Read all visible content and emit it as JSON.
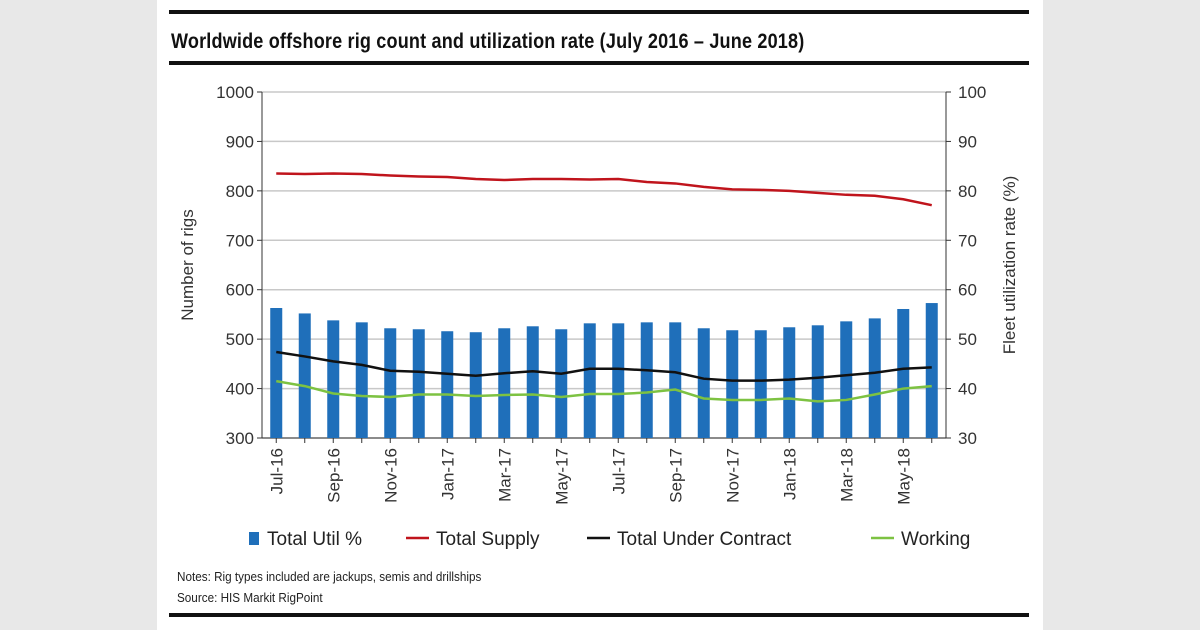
{
  "chart_data": {
    "type": "bar+line",
    "title": "Worldwide offshore rig count and utilization rate (July 2016 – June 2018)",
    "ylabel": "Number of rigs",
    "y2label": "Fleet utilization rate (%)",
    "ylim": [
      300,
      1000
    ],
    "y2lim": [
      30,
      100
    ],
    "yticks": [
      300,
      400,
      500,
      600,
      700,
      800,
      900,
      1000
    ],
    "y2ticks": [
      30,
      40,
      50,
      60,
      70,
      80,
      90,
      100
    ],
    "grid": true,
    "legend_position": "bottom",
    "categories": [
      "Jul-16",
      "Aug-16",
      "Sep-16",
      "Oct-16",
      "Nov-16",
      "Dec-16",
      "Jan-17",
      "Feb-17",
      "Mar-17",
      "Apr-17",
      "May-17",
      "Jun-17",
      "Jul-17",
      "Aug-17",
      "Sep-17",
      "Oct-17",
      "Nov-17",
      "Dec-17",
      "Jan-18",
      "Feb-18",
      "Mar-18",
      "Apr-18",
      "May-18",
      "Jun-18"
    ],
    "xtick_labels": [
      "Jul-16",
      "Sep-16",
      "Nov-16",
      "Jan-17",
      "Mar-17",
      "May-17",
      "Jul-17",
      "Sep-17",
      "Nov-17",
      "Jan-18",
      "Mar-18",
      "May-18"
    ],
    "series": [
      {
        "name": "Total Util %",
        "type": "bar",
        "axis": "right",
        "color": "#1f6fba",
        "values": [
          56.3,
          55.2,
          53.8,
          53.4,
          52.2,
          52.0,
          51.6,
          51.4,
          52.2,
          52.6,
          52.0,
          53.2,
          53.2,
          53.4,
          53.4,
          52.2,
          51.8,
          51.8,
          52.4,
          52.8,
          53.6,
          54.2,
          56.1,
          57.3
        ]
      },
      {
        "name": "Total Supply",
        "type": "line",
        "axis": "left",
        "color": "#c0141c",
        "values": [
          835,
          834,
          835,
          834,
          831,
          829,
          828,
          824,
          822,
          824,
          824,
          823,
          824,
          818,
          815,
          808,
          803,
          802,
          800,
          796,
          792,
          790,
          783,
          771
        ]
      },
      {
        "name": "Total Under Contract",
        "type": "line",
        "axis": "left",
        "color": "#111111",
        "values": [
          474,
          465,
          455,
          448,
          436,
          434,
          430,
          426,
          431,
          435,
          430,
          440,
          440,
          437,
          433,
          420,
          416,
          416,
          418,
          422,
          427,
          432,
          440,
          443
        ]
      },
      {
        "name": "Working",
        "type": "line",
        "axis": "left",
        "color": "#7dc242",
        "values": [
          415,
          405,
          390,
          385,
          383,
          388,
          388,
          385,
          387,
          388,
          383,
          389,
          389,
          392,
          398,
          380,
          377,
          377,
          380,
          374,
          377,
          388,
          400,
          405
        ]
      }
    ]
  },
  "notes": {
    "line1": "Notes: Rig types included are jackups, semis and drillships",
    "line2": "Source: HIS Markit RigPoint"
  }
}
